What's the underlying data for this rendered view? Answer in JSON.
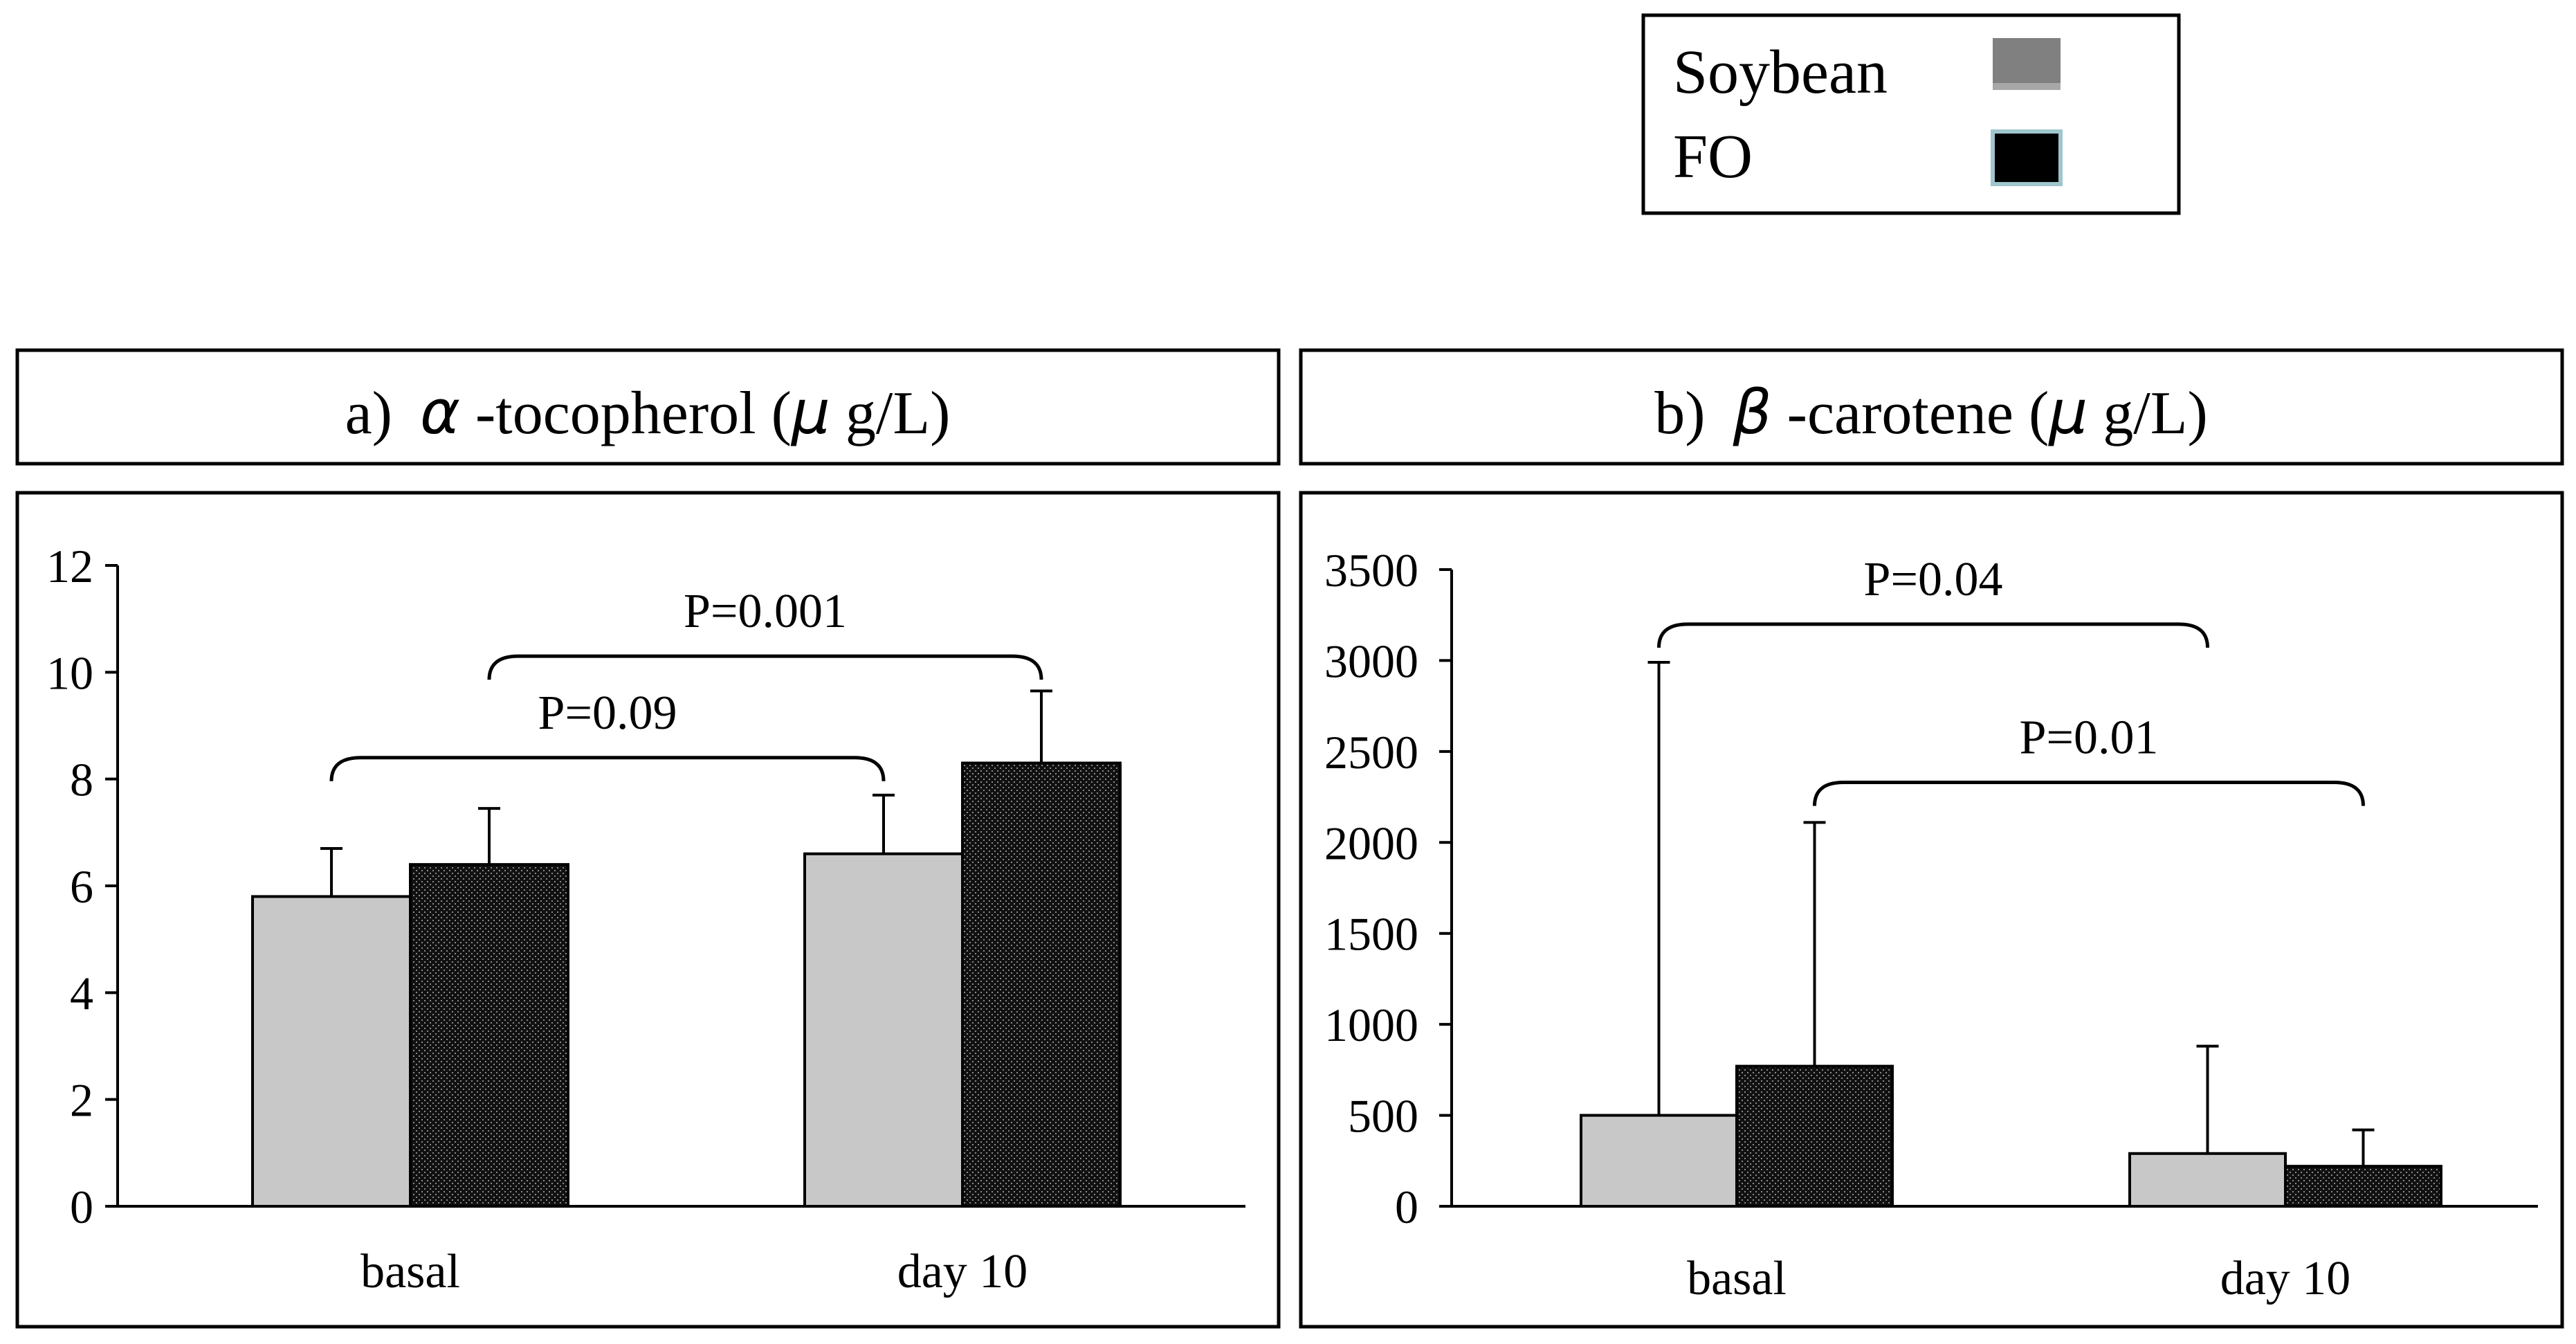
{
  "legend": {
    "position": "top-right",
    "entries": [
      {
        "label": "Soybean",
        "color": "#808080"
      },
      {
        "label": "FO",
        "color": "#000000"
      }
    ]
  },
  "colors": {
    "soybean_fill": "#c8c8c8",
    "fo_fill": "#111111",
    "frame": "#000000"
  },
  "chart_data": [
    {
      "type": "bar",
      "panel_label": "a)",
      "greek": "α",
      "title_rest": " -tocopherol (",
      "unit_greek": "μ",
      "unit_rest": " g/L)",
      "categories": [
        "basal",
        "day 10"
      ],
      "series": [
        {
          "name": "Soybean",
          "values": [
            5.8,
            6.6
          ],
          "errors": [
            0.9,
            1.1
          ]
        },
        {
          "name": "FO",
          "values": [
            6.4,
            8.3
          ],
          "errors": [
            1.05,
            1.35
          ]
        }
      ],
      "ylim": [
        0,
        12
      ],
      "yticks": [
        0,
        2,
        4,
        6,
        8,
        10,
        12
      ],
      "annotations": [
        {
          "text": "P=0.09",
          "from": {
            "category": 0,
            "series": 0
          },
          "to": {
            "category": 1,
            "series": 0
          },
          "level": 8.4
        },
        {
          "text": "P=0.001",
          "from": {
            "category": 0,
            "series": 1
          },
          "to": {
            "category": 1,
            "series": 1
          },
          "level": 10.3
        }
      ]
    },
    {
      "type": "bar",
      "panel_label": "b)",
      "greek": "β",
      "title_rest": " -carotene (",
      "unit_greek": "μ",
      "unit_rest": " g/L)",
      "categories": [
        "basal",
        "day 10"
      ],
      "series": [
        {
          "name": "Soybean",
          "values": [
            500,
            290
          ],
          "errors": [
            2490,
            590
          ]
        },
        {
          "name": "FO",
          "values": [
            770,
            220
          ],
          "errors": [
            1340,
            200
          ]
        }
      ],
      "ylim": [
        0,
        3500
      ],
      "yticks": [
        0,
        500,
        1000,
        1500,
        2000,
        2500,
        3000,
        3500
      ],
      "annotations": [
        {
          "text": "P=0.04",
          "from": {
            "category": 0,
            "series": 0
          },
          "to": {
            "category": 1,
            "series": 0
          },
          "level": 3200
        },
        {
          "text": "P=0.01",
          "from": {
            "category": 0,
            "series": 1
          },
          "to": {
            "category": 1,
            "series": 1
          },
          "level": 2330
        }
      ]
    }
  ]
}
